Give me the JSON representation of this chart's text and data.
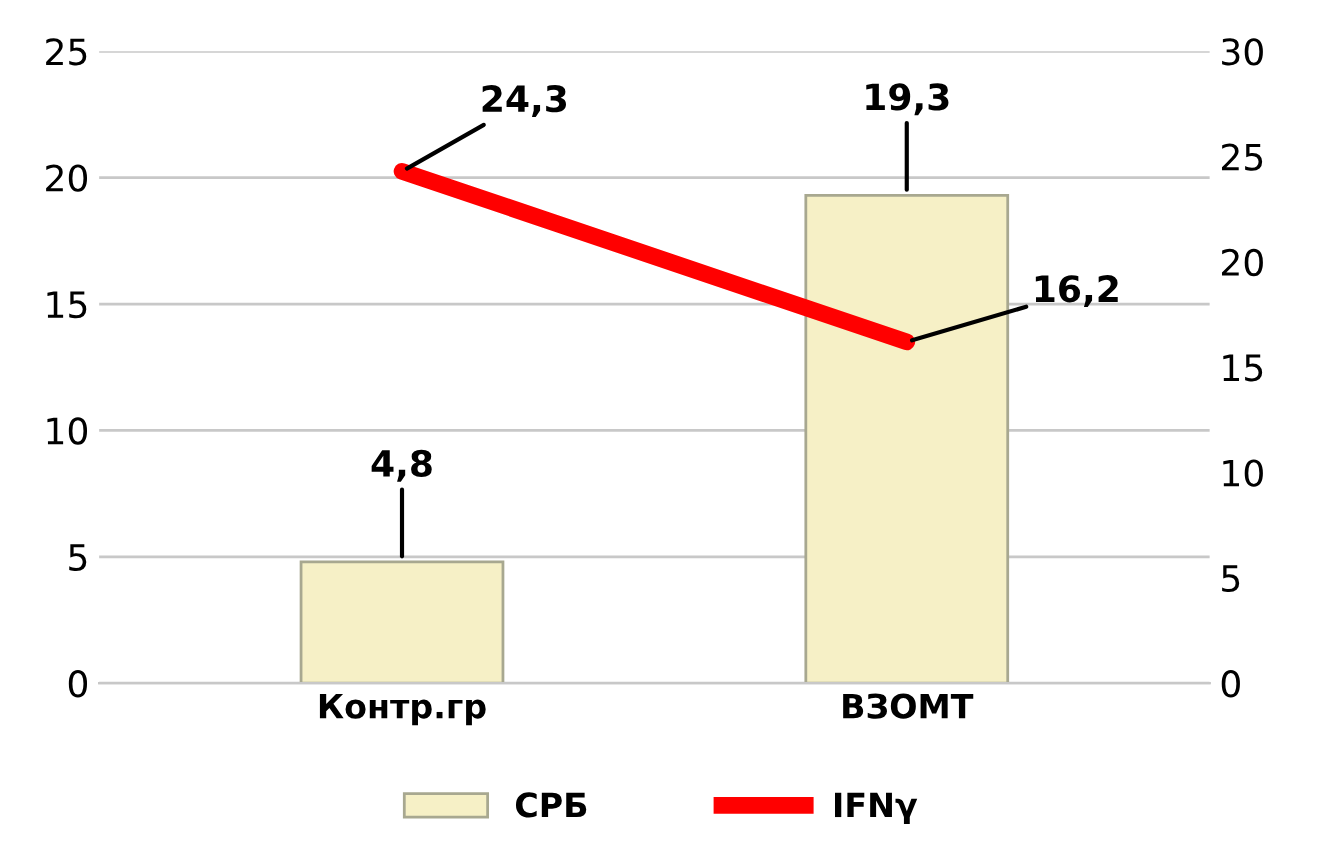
{
  "chart_data": {
    "type": "bar",
    "categories": [
      "Контр.гр",
      "ВЗОМТ"
    ],
    "series": [
      {
        "name": "СРБ",
        "color": "#f6f0c6",
        "values": [
          4.8,
          19.3
        ],
        "value_labels": [
          "4,8",
          "19,3"
        ]
      },
      {
        "name": "IFNγ",
        "type": "line",
        "axis": "y2",
        "color": "#ff0000",
        "values": [
          24.3,
          16.2
        ],
        "value_labels": [
          "24,3",
          "16,2"
        ]
      }
    ],
    "ylim": [
      0,
      25
    ],
    "yticks": [
      0,
      5,
      10,
      15,
      20,
      25
    ],
    "y2lim": [
      0,
      30
    ],
    "y2ticks": [
      0,
      5,
      10,
      15,
      20,
      25,
      30
    ],
    "grid": "y",
    "legend": "bottom",
    "marker": "none",
    "line_style": "solid"
  }
}
